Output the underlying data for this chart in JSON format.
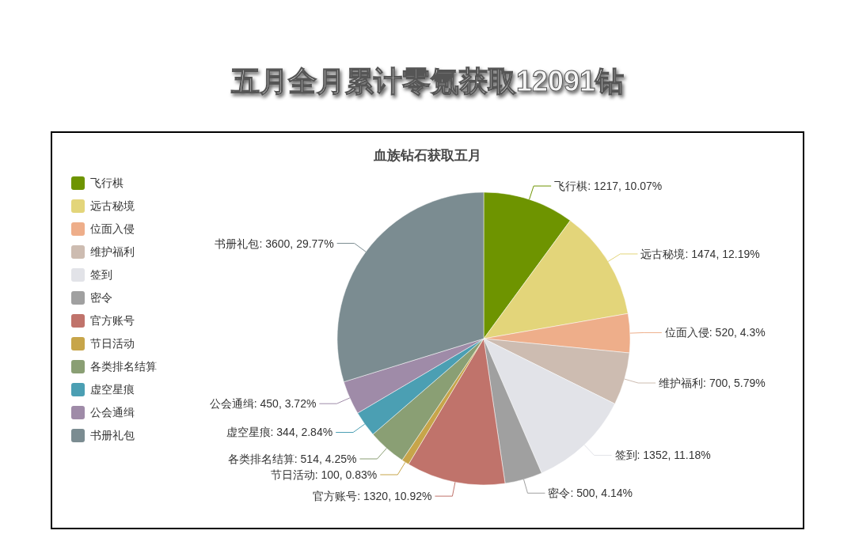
{
  "chart_data": {
    "type": "pie",
    "title": "五月全月累计零氪获取12091钻",
    "subtitle": "血族钻石获取五月",
    "categories": [
      "飞行棋",
      "远古秘境",
      "位面入侵",
      "维护福利",
      "签到",
      "密令",
      "官方账号",
      "节日活动",
      "各类排名结算",
      "虚空星痕",
      "公会通缉",
      "书册礼包"
    ],
    "values": [
      1217,
      1474,
      520,
      700,
      1352,
      500,
      1320,
      100,
      514,
      344,
      450,
      3600
    ],
    "value_labels": [
      "飞行棋: 1217, 10.07%",
      "远古秘境: 1474, 12.19%",
      "位面入侵: 520, 4.3%",
      "维护福利: 700, 5.79%",
      "签到: 1352, 11.18%",
      "密令: 500, 4.14%",
      "官方账号: 1320, 10.92%",
      "节日活动: 100, 0.83%",
      "各类排名结算: 514, 4.25%",
      "虚空星痕: 344, 2.84%",
      "公会通缉: 450, 3.72%",
      "书册礼包: 3600, 29.77%"
    ],
    "colors": [
      "#6e9400",
      "#e3d57a",
      "#eeae8a",
      "#cdbcb1",
      "#e2e3e8",
      "#a0a0a0",
      "#c0736b",
      "#c7a54a",
      "#8a9f74",
      "#4b9fb3",
      "#9f8ba8",
      "#7b8c91"
    ],
    "legend": "top left"
  }
}
